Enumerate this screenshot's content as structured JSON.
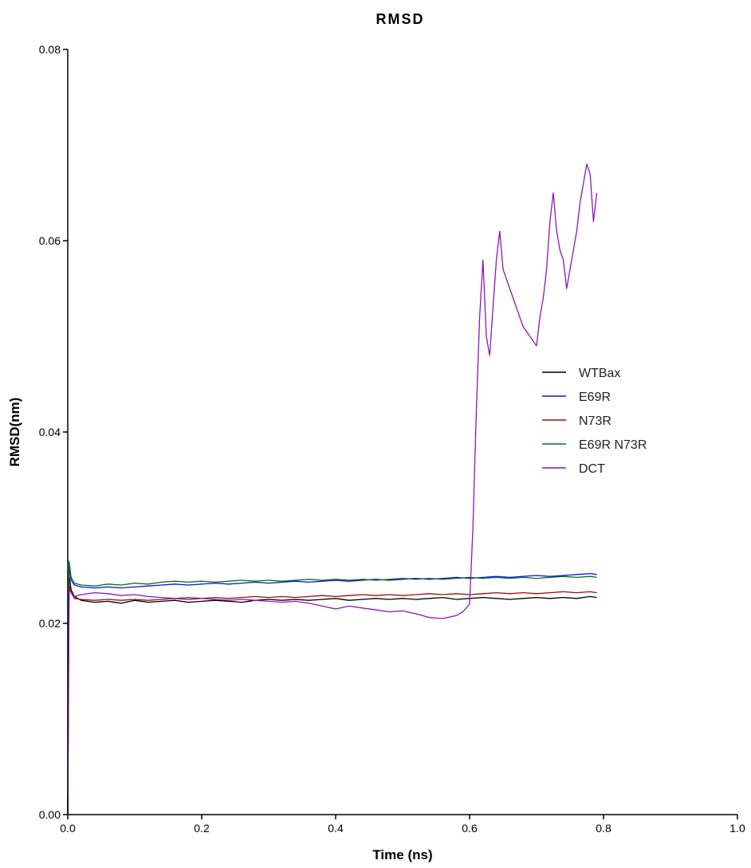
{
  "chart_data": {
    "type": "line",
    "title": "RMSD",
    "xlabel": "Time (ns)",
    "ylabel": "RMSD(nm)",
    "xlim": [
      0.0,
      1.0
    ],
    "ylim": [
      0.0,
      0.08
    ],
    "xticks": [
      0.0,
      0.2,
      0.4,
      0.6,
      0.8,
      1.0
    ],
    "xtick_labels": [
      "0.0",
      "0.2",
      "0.4",
      "0.6",
      "0.8",
      "1.0"
    ],
    "yticks": [
      0.0,
      0.02,
      0.04,
      0.06,
      0.08
    ],
    "ytick_labels": [
      "0.00",
      "0.02",
      "0.04",
      "0.06",
      "0.08"
    ],
    "grid": false,
    "legend_position": "right",
    "series": [
      {
        "name": "WTBax",
        "color": "#000000",
        "x": [
          0.0,
          0.001,
          0.002,
          0.005,
          0.01,
          0.02,
          0.04,
          0.06,
          0.08,
          0.1,
          0.12,
          0.14,
          0.16,
          0.18,
          0.2,
          0.22,
          0.24,
          0.26,
          0.28,
          0.3,
          0.32,
          0.34,
          0.36,
          0.38,
          0.4,
          0.42,
          0.44,
          0.46,
          0.48,
          0.5,
          0.52,
          0.54,
          0.56,
          0.58,
          0.6,
          0.62,
          0.64,
          0.66,
          0.68,
          0.7,
          0.72,
          0.74,
          0.76,
          0.78,
          0.79
        ],
        "y": [
          0.0,
          0.015,
          0.025,
          0.0235,
          0.0228,
          0.0224,
          0.0222,
          0.0223,
          0.0221,
          0.0224,
          0.0222,
          0.0223,
          0.0224,
          0.0222,
          0.0223,
          0.0224,
          0.0223,
          0.0222,
          0.0224,
          0.0225,
          0.0224,
          0.0225,
          0.0224,
          0.0225,
          0.0226,
          0.0224,
          0.0225,
          0.0226,
          0.0225,
          0.0226,
          0.0225,
          0.0226,
          0.0227,
          0.0225,
          0.0226,
          0.0227,
          0.0226,
          0.0225,
          0.0226,
          0.0227,
          0.0226,
          0.0227,
          0.0226,
          0.0228,
          0.0227
        ]
      },
      {
        "name": "E69R",
        "color": "#0a14e6",
        "x": [
          0.0,
          0.001,
          0.002,
          0.005,
          0.01,
          0.02,
          0.04,
          0.06,
          0.08,
          0.1,
          0.12,
          0.14,
          0.16,
          0.18,
          0.2,
          0.22,
          0.24,
          0.26,
          0.28,
          0.3,
          0.32,
          0.34,
          0.36,
          0.38,
          0.4,
          0.42,
          0.44,
          0.46,
          0.48,
          0.5,
          0.52,
          0.54,
          0.56,
          0.58,
          0.6,
          0.62,
          0.64,
          0.66,
          0.68,
          0.7,
          0.72,
          0.74,
          0.76,
          0.78,
          0.79
        ],
        "y": [
          0.0,
          0.016,
          0.026,
          0.0245,
          0.024,
          0.0238,
          0.0237,
          0.0238,
          0.0237,
          0.0238,
          0.0239,
          0.024,
          0.0241,
          0.024,
          0.0241,
          0.0242,
          0.0241,
          0.0242,
          0.0243,
          0.0242,
          0.0243,
          0.0244,
          0.0243,
          0.0244,
          0.0245,
          0.0244,
          0.0245,
          0.0246,
          0.0245,
          0.0246,
          0.0247,
          0.0246,
          0.0247,
          0.0248,
          0.0247,
          0.0248,
          0.0249,
          0.0248,
          0.0249,
          0.025,
          0.0249,
          0.025,
          0.0251,
          0.0252,
          0.0251
        ]
      },
      {
        "name": "N73R",
        "color": "#a00c0c",
        "x": [
          0.0,
          0.001,
          0.002,
          0.005,
          0.01,
          0.02,
          0.04,
          0.06,
          0.08,
          0.1,
          0.12,
          0.14,
          0.16,
          0.18,
          0.2,
          0.22,
          0.24,
          0.26,
          0.28,
          0.3,
          0.32,
          0.34,
          0.36,
          0.38,
          0.4,
          0.42,
          0.44,
          0.46,
          0.48,
          0.5,
          0.52,
          0.54,
          0.56,
          0.58,
          0.6,
          0.62,
          0.64,
          0.66,
          0.68,
          0.7,
          0.72,
          0.74,
          0.76,
          0.78,
          0.79
        ],
        "y": [
          0.0,
          0.014,
          0.024,
          0.0232,
          0.0226,
          0.0225,
          0.0224,
          0.0225,
          0.0224,
          0.0225,
          0.0224,
          0.0225,
          0.0226,
          0.0225,
          0.0226,
          0.0227,
          0.0226,
          0.0227,
          0.0228,
          0.0227,
          0.0228,
          0.0227,
          0.0228,
          0.0229,
          0.0228,
          0.0229,
          0.023,
          0.0229,
          0.023,
          0.0229,
          0.023,
          0.0231,
          0.023,
          0.0231,
          0.023,
          0.0231,
          0.0232,
          0.0231,
          0.0232,
          0.0231,
          0.0232,
          0.0233,
          0.0232,
          0.0233,
          0.0232
        ]
      },
      {
        "name": "E69R N73R",
        "color": "#0b6b1e",
        "x": [
          0.0,
          0.001,
          0.002,
          0.005,
          0.01,
          0.02,
          0.04,
          0.06,
          0.08,
          0.1,
          0.12,
          0.14,
          0.16,
          0.18,
          0.2,
          0.22,
          0.24,
          0.26,
          0.28,
          0.3,
          0.32,
          0.34,
          0.36,
          0.38,
          0.4,
          0.42,
          0.44,
          0.46,
          0.48,
          0.5,
          0.52,
          0.54,
          0.56,
          0.58,
          0.6,
          0.62,
          0.64,
          0.66,
          0.68,
          0.7,
          0.72,
          0.74,
          0.76,
          0.78,
          0.79
        ],
        "y": [
          0.0,
          0.016,
          0.0265,
          0.0248,
          0.0242,
          0.024,
          0.0239,
          0.0241,
          0.024,
          0.0242,
          0.0241,
          0.0243,
          0.0244,
          0.0243,
          0.0244,
          0.0243,
          0.0244,
          0.0245,
          0.0244,
          0.0245,
          0.0244,
          0.0245,
          0.0246,
          0.0245,
          0.0246,
          0.0245,
          0.0246,
          0.0245,
          0.0246,
          0.0247,
          0.0246,
          0.0247,
          0.0246,
          0.0247,
          0.0248,
          0.0247,
          0.0248,
          0.0247,
          0.0248,
          0.0247,
          0.0248,
          0.0249,
          0.0248,
          0.0249,
          0.0248
        ]
      },
      {
        "name": "DCT",
        "color": "#8c16b8",
        "x": [
          0.0,
          0.001,
          0.002,
          0.005,
          0.01,
          0.02,
          0.04,
          0.06,
          0.08,
          0.1,
          0.12,
          0.14,
          0.16,
          0.18,
          0.2,
          0.22,
          0.24,
          0.26,
          0.28,
          0.3,
          0.32,
          0.34,
          0.36,
          0.38,
          0.4,
          0.42,
          0.44,
          0.46,
          0.48,
          0.5,
          0.52,
          0.54,
          0.56,
          0.58,
          0.59,
          0.6,
          0.605,
          0.61,
          0.615,
          0.62,
          0.625,
          0.63,
          0.635,
          0.64,
          0.645,
          0.65,
          0.66,
          0.67,
          0.68,
          0.69,
          0.7,
          0.705,
          0.71,
          0.715,
          0.72,
          0.725,
          0.73,
          0.735,
          0.74,
          0.745,
          0.75,
          0.755,
          0.76,
          0.765,
          0.77,
          0.775,
          0.78,
          0.785,
          0.79
        ],
        "y": [
          0.0,
          0.01,
          0.0235,
          0.0232,
          0.0228,
          0.023,
          0.0232,
          0.0231,
          0.0229,
          0.023,
          0.0228,
          0.0227,
          0.0226,
          0.0227,
          0.0226,
          0.0225,
          0.0224,
          0.0225,
          0.0224,
          0.0223,
          0.0222,
          0.0223,
          0.0221,
          0.0218,
          0.0215,
          0.0218,
          0.0216,
          0.0214,
          0.0212,
          0.0213,
          0.021,
          0.0206,
          0.0205,
          0.0208,
          0.0212,
          0.022,
          0.03,
          0.042,
          0.052,
          0.058,
          0.05,
          0.048,
          0.053,
          0.058,
          0.061,
          0.057,
          0.055,
          0.053,
          0.051,
          0.05,
          0.049,
          0.052,
          0.054,
          0.057,
          0.062,
          0.065,
          0.061,
          0.059,
          0.058,
          0.055,
          0.057,
          0.059,
          0.061,
          0.064,
          0.066,
          0.068,
          0.067,
          0.062,
          0.065
        ]
      }
    ]
  }
}
